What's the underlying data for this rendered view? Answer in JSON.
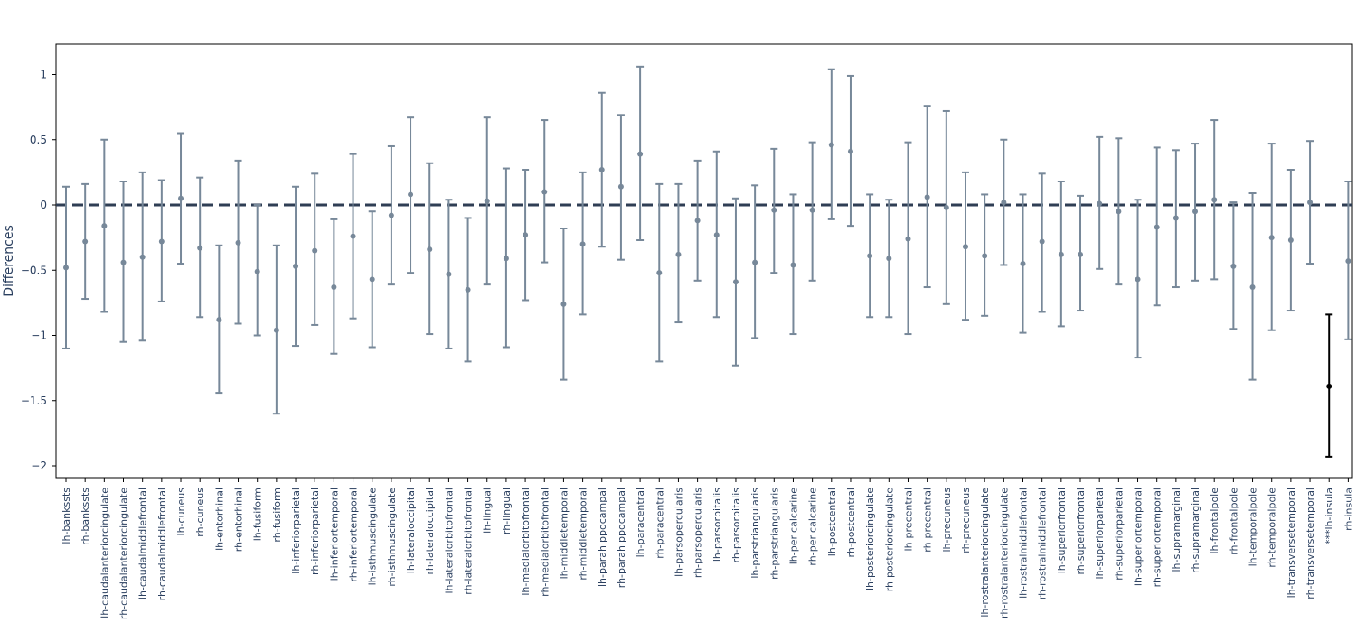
{
  "chart_data": {
    "type": "scatter",
    "title": "",
    "xlabel": "",
    "ylabel": "Differences",
    "ylim": [
      -2.1,
      1.2
    ],
    "yticks": [
      {
        "value": 1,
        "label": "1"
      },
      {
        "value": 0.5,
        "label": "0.5"
      },
      {
        "value": 0,
        "label": "0"
      },
      {
        "value": -0.5,
        "label": "−0.5"
      },
      {
        "value": -1,
        "label": "−1"
      },
      {
        "value": -1.5,
        "label": "−1.5"
      },
      {
        "value": -2,
        "label": "−2"
      }
    ],
    "reference_line": 0,
    "grid": false,
    "colors": {
      "default": "#778899",
      "highlight": "#000000",
      "zero_line": "#2f3e54",
      "axis": "#000000",
      "text": "#2a3f5f"
    },
    "categories": [
      "lh-bankssts",
      "rh-bankssts",
      "lh-caudalanteriorcingulate",
      "rh-caudalanteriorcingulate",
      "lh-caudalmiddlefrontal",
      "rh-caudalmiddlefrontal",
      "lh-cuneus",
      "rh-cuneus",
      "lh-entorhinal",
      "rh-entorhinal",
      "lh-fusiform",
      "rh-fusiform",
      "lh-inferiorparietal",
      "rh-inferiorparietal",
      "lh-inferiortemporal",
      "rh-inferiortemporal",
      "lh-isthmuscingulate",
      "rh-isthmuscingulate",
      "lh-lateraloccipital",
      "rh-lateraloccipital",
      "lh-lateralorbitofrontal",
      "rh-lateralorbitofrontal",
      "lh-lingual",
      "rh-lingual",
      "lh-medialorbitofrontal",
      "rh-medialorbitofrontal",
      "lh-middletemporal",
      "rh-middletemporal",
      "lh-parahippocampal",
      "rh-parahippocampal",
      "lh-paracentral",
      "rh-paracentral",
      "lh-parsopercularis",
      "rh-parsopercularis",
      "lh-parsorbitalis",
      "rh-parsorbitalis",
      "lh-parstriangularis",
      "rh-parstriangularis",
      "lh-pericalcarine",
      "rh-pericalcarine",
      "lh-postcentral",
      "rh-postcentral",
      "lh-posteriorcingulate",
      "rh-posteriorcingulate",
      "lh-precentral",
      "rh-precentral",
      "lh-precuneus",
      "rh-precuneus",
      "lh-rostralanteriorcingulate",
      "rh-rostralanteriorcingulate",
      "lh-rostralmiddlefrontal",
      "rh-rostralmiddlefrontal",
      "lh-superiorfrontal",
      "rh-superiorfrontal",
      "lh-superiorparietal",
      "rh-superiorparietal",
      "lh-superiortemporal",
      "rh-superiortemporal",
      "lh-supramarginal",
      "rh-supramarginal",
      "lh-frontalpole",
      "rh-frontalpole",
      "lh-temporalpole",
      "rh-temporalpole",
      "lh-transversetemporal",
      "rh-transversetemporal",
      "***lh-insula",
      "rh-insula"
    ],
    "values": [
      -0.48,
      -0.28,
      -0.16,
      -0.44,
      -0.4,
      -0.28,
      0.05,
      -0.33,
      -0.88,
      -0.29,
      -0.51,
      -0.96,
      -0.47,
      -0.35,
      -0.63,
      -0.24,
      -0.57,
      -0.08,
      0.08,
      -0.34,
      -0.53,
      -0.65,
      0.03,
      -0.41,
      -0.23,
      0.1,
      -0.76,
      -0.3,
      0.27,
      0.14,
      0.39,
      -0.52,
      -0.38,
      -0.12,
      -0.23,
      -0.59,
      -0.44,
      -0.04,
      -0.46,
      -0.04,
      0.46,
      0.41,
      -0.39,
      -0.41,
      -0.26,
      0.06,
      -0.02,
      -0.32,
      -0.39,
      0.02,
      -0.45,
      -0.28,
      -0.38,
      -0.38,
      0.01,
      -0.05,
      -0.57,
      -0.17,
      -0.1,
      -0.05,
      0.04,
      -0.47,
      -0.63,
      -0.25,
      -0.27,
      0.02,
      -1.39,
      -0.43
    ],
    "lower": [
      -1.1,
      -0.72,
      -0.82,
      -1.05,
      -1.04,
      -0.74,
      -0.45,
      -0.86,
      -1.44,
      -0.91,
      -1.0,
      -1.6,
      -1.08,
      -0.92,
      -1.14,
      -0.87,
      -1.09,
      -0.61,
      -0.52,
      -0.99,
      -1.1,
      -1.2,
      -0.61,
      -1.09,
      -0.73,
      -0.44,
      -1.34,
      -0.84,
      -0.32,
      -0.42,
      -0.27,
      -1.2,
      -0.9,
      -0.58,
      -0.86,
      -1.23,
      -1.02,
      -0.52,
      -0.99,
      -0.58,
      -0.11,
      -0.16,
      -0.86,
      -0.86,
      -0.99,
      -0.63,
      -0.76,
      -0.88,
      -0.85,
      -0.46,
      -0.98,
      -0.82,
      -0.93,
      -0.81,
      -0.49,
      -0.61,
      -1.17,
      -0.77,
      -0.63,
      -0.58,
      -0.57,
      -0.95,
      -1.34,
      -0.96,
      -0.81,
      -0.45,
      -1.93,
      -1.03
    ],
    "upper": [
      0.14,
      0.16,
      0.5,
      0.18,
      0.25,
      0.19,
      0.55,
      0.21,
      -0.31,
      0.34,
      0.0,
      -0.31,
      0.14,
      0.24,
      -0.11,
      0.39,
      -0.05,
      0.45,
      0.67,
      0.32,
      0.04,
      -0.1,
      0.67,
      0.28,
      0.27,
      0.65,
      -0.18,
      0.25,
      0.86,
      0.69,
      1.06,
      0.16,
      0.16,
      0.34,
      0.41,
      0.05,
      0.15,
      0.43,
      0.08,
      0.48,
      1.04,
      0.99,
      0.08,
      0.04,
      0.48,
      0.76,
      0.72,
      0.25,
      0.08,
      0.5,
      0.08,
      0.24,
      0.18,
      0.07,
      0.52,
      0.51,
      0.04,
      0.44,
      0.42,
      0.47,
      0.65,
      0.02,
      0.09,
      0.47,
      0.27,
      0.49,
      -0.84,
      0.18
    ],
    "highlight_index": 66
  }
}
